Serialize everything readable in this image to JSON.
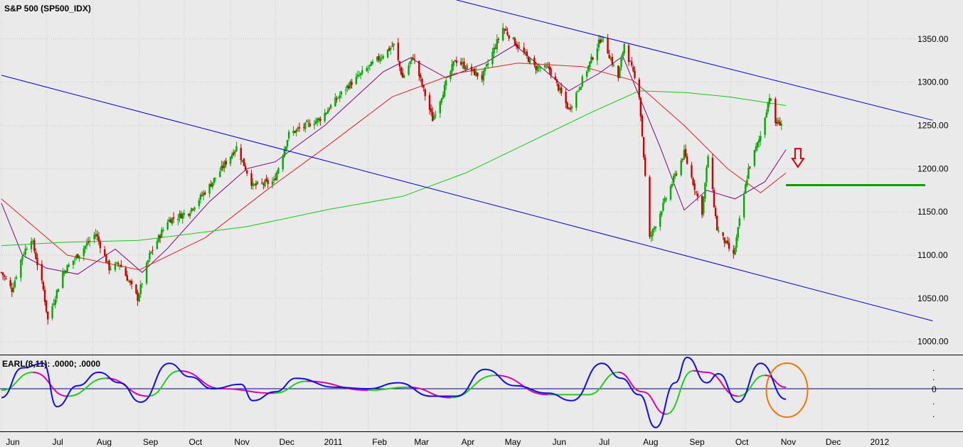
{
  "colors": {
    "background": "#eaeaea",
    "grid": "#c8c8c8",
    "axis": "#000000",
    "candle_up": "#00aa00",
    "candle_down": "#cc0000",
    "trendline": "#0000cc",
    "ma_short": "#800080",
    "ma_mid": "#dd2222",
    "ma_long": "#11cc11",
    "support_line": "#00a000",
    "arrow": "#dd0000",
    "circle": "#ee7700",
    "earl_fast": "#1010dd",
    "earl_slow_up": "#22cc22",
    "earl_slow_down": "#dd00aa"
  },
  "chart_data": [
    {
      "type": "candlestick",
      "title": "S&P 500 (SP500_IDX)",
      "x_axis": {
        "labels": [
          "Jun",
          "Jul",
          "Aug",
          "Sep",
          "Oct",
          "Nov",
          "Dec",
          "2011",
          "Feb",
          "Mar",
          "Apr",
          "May",
          "Jun",
          "Jul",
          "Aug",
          "Sep",
          "Oct",
          "Nov",
          "Dec",
          "2012"
        ],
        "start": "2010-06-01",
        "end": "2012-01-31"
      },
      "y_axis": {
        "ylim": [
          985,
          1395
        ],
        "tick_labels": [
          "1350.00",
          "1300.00",
          "1250.00",
          "1200.00",
          "1150.00",
          "1100.00",
          "1050.00",
          "1000.00"
        ]
      },
      "grid": true,
      "price_path": [
        {
          "date": "2010-06-01",
          "close": 1080
        },
        {
          "date": "2010-06-08",
          "close": 1060
        },
        {
          "date": "2010-06-15",
          "close": 1100
        },
        {
          "date": "2010-06-21",
          "close": 1120
        },
        {
          "date": "2010-06-29",
          "close": 1060
        },
        {
          "date": "2010-07-02",
          "close": 1025
        },
        {
          "date": "2010-07-12",
          "close": 1080
        },
        {
          "date": "2010-07-22",
          "close": 1100
        },
        {
          "date": "2010-08-03",
          "close": 1125
        },
        {
          "date": "2010-08-12",
          "close": 1085
        },
        {
          "date": "2010-08-19",
          "close": 1090
        },
        {
          "date": "2010-08-31",
          "close": 1050
        },
        {
          "date": "2010-09-08",
          "close": 1100
        },
        {
          "date": "2010-09-20",
          "close": 1140
        },
        {
          "date": "2010-10-04",
          "close": 1150
        },
        {
          "date": "2010-10-18",
          "close": 1180
        },
        {
          "date": "2010-11-05",
          "close": 1225
        },
        {
          "date": "2010-11-16",
          "close": 1180
        },
        {
          "date": "2010-11-30",
          "close": 1185
        },
        {
          "date": "2010-12-10",
          "close": 1240
        },
        {
          "date": "2010-12-31",
          "close": 1258
        },
        {
          "date": "2011-01-18",
          "close": 1295
        },
        {
          "date": "2011-02-18",
          "close": 1343
        },
        {
          "date": "2011-02-24",
          "close": 1305
        },
        {
          "date": "2011-03-03",
          "close": 1330
        },
        {
          "date": "2011-03-16",
          "close": 1257
        },
        {
          "date": "2011-03-31",
          "close": 1326
        },
        {
          "date": "2011-04-18",
          "close": 1305
        },
        {
          "date": "2011-05-02",
          "close": 1363
        },
        {
          "date": "2011-05-23",
          "close": 1318
        },
        {
          "date": "2011-06-02",
          "close": 1315
        },
        {
          "date": "2011-06-15",
          "close": 1268
        },
        {
          "date": "2011-07-07",
          "close": 1353
        },
        {
          "date": "2011-07-18",
          "close": 1305
        },
        {
          "date": "2011-07-22",
          "close": 1345
        },
        {
          "date": "2011-08-01",
          "close": 1286
        },
        {
          "date": "2011-08-08",
          "close": 1119
        },
        {
          "date": "2011-08-31",
          "close": 1218
        },
        {
          "date": "2011-09-12",
          "close": 1150
        },
        {
          "date": "2011-09-16",
          "close": 1215
        },
        {
          "date": "2011-09-22",
          "close": 1130
        },
        {
          "date": "2011-10-03",
          "close": 1099
        },
        {
          "date": "2011-10-13",
          "close": 1200
        },
        {
          "date": "2011-10-21",
          "close": 1238
        },
        {
          "date": "2011-10-27",
          "close": 1284
        },
        {
          "date": "2011-10-31",
          "close": 1253
        },
        {
          "date": "2011-11-04",
          "close": 1253
        }
      ],
      "moving_averages": [
        {
          "key": "ma_short",
          "points": [
            {
              "date": "2010-06-01",
              "value": 1160
            },
            {
              "date": "2010-06-15",
              "value": 1100
            },
            {
              "date": "2010-07-01",
              "value": 1085
            },
            {
              "date": "2010-07-22",
              "value": 1078
            },
            {
              "date": "2010-08-16",
              "value": 1107
            },
            {
              "date": "2010-09-03",
              "value": 1080
            },
            {
              "date": "2010-09-20",
              "value": 1108
            },
            {
              "date": "2010-10-18",
              "value": 1162
            },
            {
              "date": "2010-11-12",
              "value": 1200
            },
            {
              "date": "2010-12-01",
              "value": 1208
            },
            {
              "date": "2011-01-03",
              "value": 1250
            },
            {
              "date": "2011-02-11",
              "value": 1312
            },
            {
              "date": "2011-03-01",
              "value": 1328
            },
            {
              "date": "2011-03-25",
              "value": 1305
            },
            {
              "date": "2011-04-20",
              "value": 1322
            },
            {
              "date": "2011-05-10",
              "value": 1343
            },
            {
              "date": "2011-06-15",
              "value": 1290
            },
            {
              "date": "2011-07-05",
              "value": 1310
            },
            {
              "date": "2011-07-21",
              "value": 1330
            },
            {
              "date": "2011-08-15",
              "value": 1225
            },
            {
              "date": "2011-08-31",
              "value": 1152
            },
            {
              "date": "2011-09-15",
              "value": 1175
            },
            {
              "date": "2011-10-04",
              "value": 1165
            },
            {
              "date": "2011-10-24",
              "value": 1185
            },
            {
              "date": "2011-11-07",
              "value": 1222
            }
          ]
        },
        {
          "key": "ma_mid",
          "points": [
            {
              "date": "2010-06-01",
              "value": 1165
            },
            {
              "date": "2010-07-15",
              "value": 1100
            },
            {
              "date": "2010-09-01",
              "value": 1083
            },
            {
              "date": "2010-10-15",
              "value": 1120
            },
            {
              "date": "2010-11-25",
              "value": 1175
            },
            {
              "date": "2011-01-06",
              "value": 1228
            },
            {
              "date": "2011-02-17",
              "value": 1283
            },
            {
              "date": "2011-03-31",
              "value": 1310
            },
            {
              "date": "2011-05-12",
              "value": 1322
            },
            {
              "date": "2011-06-24",
              "value": 1318
            },
            {
              "date": "2011-07-28",
              "value": 1302
            },
            {
              "date": "2011-08-31",
              "value": 1250
            },
            {
              "date": "2011-09-29",
              "value": 1200
            },
            {
              "date": "2011-10-21",
              "value": 1172
            },
            {
              "date": "2011-11-07",
              "value": 1195
            }
          ]
        },
        {
          "key": "ma_long",
          "points": [
            {
              "date": "2010-06-01",
              "value": 1111
            },
            {
              "date": "2010-07-15",
              "value": 1115
            },
            {
              "date": "2010-09-01",
              "value": 1117
            },
            {
              "date": "2010-11-12",
              "value": 1133
            },
            {
              "date": "2011-01-06",
              "value": 1153
            },
            {
              "date": "2011-02-24",
              "value": 1168
            },
            {
              "date": "2011-04-07",
              "value": 1195
            },
            {
              "date": "2011-05-19",
              "value": 1230
            },
            {
              "date": "2011-06-30",
              "value": 1265
            },
            {
              "date": "2011-08-01",
              "value": 1290
            },
            {
              "date": "2011-09-01",
              "value": 1288
            },
            {
              "date": "2011-09-30",
              "value": 1283
            },
            {
              "date": "2011-11-07",
              "value": 1273
            }
          ]
        }
      ],
      "annotations": [
        {
          "kind": "trendline",
          "start": {
            "date": "2011-04-01",
            "value": 1395
          },
          "end": {
            "date": "2012-02-13",
            "value": 1256
          }
        },
        {
          "kind": "trendline",
          "start": {
            "date": "2010-06-01",
            "value": 1308
          },
          "end": {
            "date": "2012-02-13",
            "value": 1024
          }
        },
        {
          "kind": "support_line",
          "start": {
            "date": "2011-11-07",
            "value": 1181
          },
          "end": {
            "date": "2012-02-08",
            "value": 1181
          }
        },
        {
          "kind": "down_arrow",
          "date": "2011-11-15",
          "value": 1215
        }
      ]
    },
    {
      "type": "line",
      "title": "EARL(8,11): .0000; .0000",
      "zero_label": "0",
      "dot_label": ".",
      "series": [
        {
          "key": "earl_fast",
          "points": [
            {
              "date": "2010-06-01",
              "value": -0.3
            },
            {
              "date": "2010-06-15",
              "value": 0.7
            },
            {
              "date": "2010-06-29",
              "value": 0.85
            },
            {
              "date": "2010-07-08",
              "value": -0.6
            },
            {
              "date": "2010-07-22",
              "value": 0.1
            },
            {
              "date": "2010-08-05",
              "value": 0.55
            },
            {
              "date": "2010-08-19",
              "value": 0.2
            },
            {
              "date": "2010-09-02",
              "value": -0.45
            },
            {
              "date": "2010-09-21",
              "value": 0.85
            },
            {
              "date": "2010-10-05",
              "value": 0.4
            },
            {
              "date": "2010-10-20",
              "value": 0.0
            },
            {
              "date": "2010-11-08",
              "value": 0.15
            },
            {
              "date": "2010-11-16",
              "value": -0.4
            },
            {
              "date": "2010-12-01",
              "value": -0.1
            },
            {
              "date": "2010-12-15",
              "value": 0.35
            },
            {
              "date": "2011-01-10",
              "value": 0.05
            },
            {
              "date": "2011-02-01",
              "value": 0.0
            },
            {
              "date": "2011-02-21",
              "value": 0.2
            },
            {
              "date": "2011-03-15",
              "value": -0.25
            },
            {
              "date": "2011-04-01",
              "value": -0.25
            },
            {
              "date": "2011-04-20",
              "value": 0.65
            },
            {
              "date": "2011-05-10",
              "value": 0.1
            },
            {
              "date": "2011-06-01",
              "value": -0.15
            },
            {
              "date": "2011-06-17",
              "value": -0.4
            },
            {
              "date": "2011-07-07",
              "value": 0.85
            },
            {
              "date": "2011-07-20",
              "value": 0.35
            },
            {
              "date": "2011-08-01",
              "value": -0.2
            },
            {
              "date": "2011-08-12",
              "value": -1.3
            },
            {
              "date": "2011-08-25",
              "value": 0.2
            },
            {
              "date": "2011-09-02",
              "value": 1.05
            },
            {
              "date": "2011-09-15",
              "value": 0.2
            },
            {
              "date": "2011-09-23",
              "value": 0.5
            },
            {
              "date": "2011-10-06",
              "value": -0.45
            },
            {
              "date": "2011-10-21",
              "value": 0.85
            },
            {
              "date": "2011-11-07",
              "value": -0.35
            }
          ]
        },
        {
          "key": "earl_slow",
          "points": [
            {
              "date": "2010-06-01",
              "value": -0.05
            },
            {
              "date": "2010-06-22",
              "value": 0.55
            },
            {
              "date": "2010-07-15",
              "value": -0.25
            },
            {
              "date": "2010-08-10",
              "value": 0.35
            },
            {
              "date": "2010-09-07",
              "value": -0.25
            },
            {
              "date": "2010-09-28",
              "value": 0.6
            },
            {
              "date": "2010-10-26",
              "value": 0.0
            },
            {
              "date": "2010-11-30",
              "value": -0.15
            },
            {
              "date": "2010-12-22",
              "value": 0.25
            },
            {
              "date": "2011-02-01",
              "value": -0.05
            },
            {
              "date": "2011-02-28",
              "value": 0.05
            },
            {
              "date": "2011-03-28",
              "value": -0.3
            },
            {
              "date": "2011-04-27",
              "value": 0.45
            },
            {
              "date": "2011-06-01",
              "value": -0.2
            },
            {
              "date": "2011-06-28",
              "value": -0.2
            },
            {
              "date": "2011-07-18",
              "value": 0.55
            },
            {
              "date": "2011-08-03",
              "value": -0.1
            },
            {
              "date": "2011-08-19",
              "value": -0.85
            },
            {
              "date": "2011-09-06",
              "value": 0.6
            },
            {
              "date": "2011-09-15",
              "value": 0.55
            },
            {
              "date": "2011-10-06",
              "value": -0.25
            },
            {
              "date": "2011-10-24",
              "value": 0.45
            },
            {
              "date": "2011-11-07",
              "value": 0.05
            }
          ]
        }
      ],
      "annotations": [
        {
          "kind": "circle",
          "date": "2011-11-02",
          "value": 0.0
        }
      ]
    }
  ]
}
